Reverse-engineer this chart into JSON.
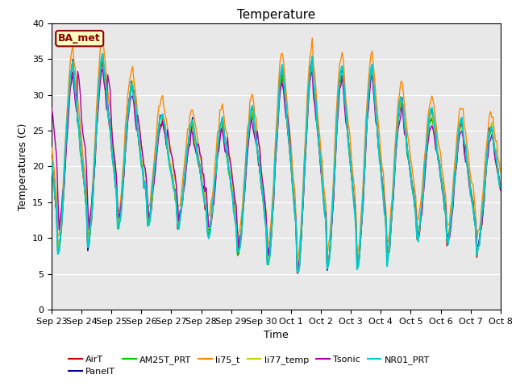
{
  "title": "Temperature",
  "xlabel": "Time",
  "ylabel": "Temperatures (C)",
  "ylim": [
    0,
    40
  ],
  "yticks": [
    0,
    5,
    10,
    15,
    20,
    25,
    30,
    35,
    40
  ],
  "annotation_text": "BA_met",
  "annotation_bg": "#FFFFC0",
  "annotation_border": "#8B0000",
  "annotation_text_color": "#8B0000",
  "bg_color": "#E8E8E8",
  "series_names": [
    "AirT",
    "PanelT",
    "AM25T_PRT",
    "li75_t",
    "li77_temp",
    "Tsonic",
    "NR01_PRT"
  ],
  "series_colors": [
    "#CC0000",
    "#000099",
    "#00CC00",
    "#FF8800",
    "#CCCC00",
    "#AA00AA",
    "#00CCCC"
  ],
  "series_lw": [
    1.0,
    1.0,
    1.0,
    1.0,
    1.0,
    1.0,
    1.5
  ],
  "n_days": 15,
  "hours_per_day": 24,
  "day_peaks": [
    33,
    34,
    35,
    29,
    26,
    25,
    26,
    28,
    35,
    33,
    33,
    33,
    27,
    27,
    25
  ],
  "day_mins": [
    8,
    8,
    11,
    12,
    12,
    11,
    8,
    7,
    5,
    6,
    6,
    6,
    10,
    10,
    8
  ],
  "tsonic_extra_night": [
    10,
    8,
    4,
    4,
    4,
    4,
    4,
    3,
    1,
    1,
    1,
    1,
    1,
    1,
    1
  ]
}
